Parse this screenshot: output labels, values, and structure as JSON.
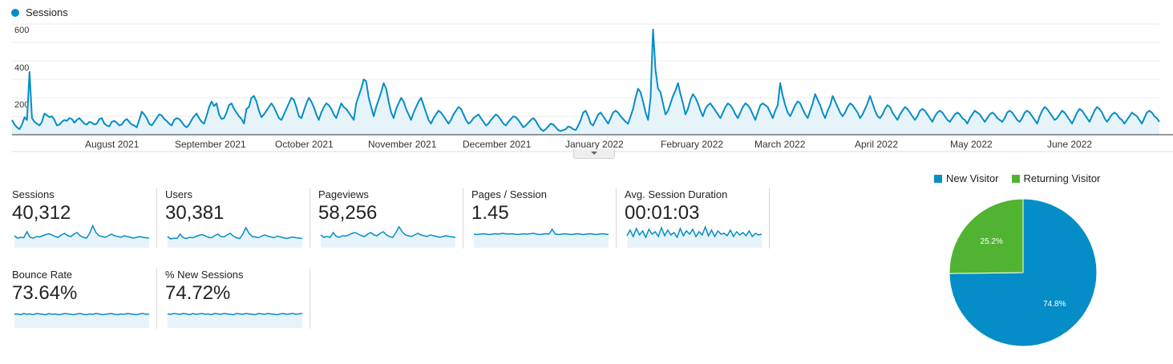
{
  "colors": {
    "series": "#058dc7",
    "area": "#e6f4fa",
    "grid": "#ebebeb",
    "new_visitor": "#058dc7",
    "returning_visitor": "#50b432"
  },
  "chart_data": [
    {
      "type": "line",
      "legend": [
        "Sessions"
      ],
      "ylim": [
        0,
        600
      ],
      "yticks": [
        "600",
        "400",
        "200"
      ],
      "xlabels": [
        "August 2021",
        "September 2021",
        "October 2021",
        "November 2021",
        "December 2021",
        "January 2022",
        "February 2022",
        "March 2022",
        "April 2022",
        "May 2022",
        "June 2022"
      ],
      "x_range": [
        "2021-07-01",
        "2022-06-30"
      ],
      "grid": true,
      "series": [
        {
          "name": "Sessions",
          "values": [
            80,
            55,
            40,
            30,
            55,
            95,
            80,
            340,
            90,
            70,
            60,
            50,
            70,
            115,
            105,
            95,
            100,
            80,
            50,
            55,
            70,
            80,
            75,
            90,
            85,
            65,
            80,
            90,
            75,
            60,
            55,
            70,
            65,
            55,
            60,
            85,
            90,
            60,
            50,
            45,
            70,
            75,
            65,
            50,
            55,
            75,
            85,
            70,
            55,
            50,
            40,
            80,
            125,
            110,
            90,
            60,
            50,
            70,
            90,
            110,
            105,
            85,
            75,
            60,
            50,
            80,
            90,
            85,
            70,
            50,
            40,
            55,
            80,
            100,
            115,
            90,
            70,
            60,
            100,
            150,
            180,
            155,
            170,
            110,
            85,
            90,
            120,
            160,
            170,
            140,
            120,
            100,
            85,
            60,
            140,
            150,
            200,
            210,
            180,
            130,
            95,
            110,
            130,
            150,
            170,
            150,
            120,
            90,
            80,
            110,
            140,
            170,
            200,
            190,
            150,
            100,
            90,
            130,
            170,
            200,
            180,
            150,
            110,
            80,
            120,
            150,
            170,
            160,
            140,
            110,
            90,
            130,
            170,
            150,
            140,
            120,
            100,
            80,
            170,
            210,
            250,
            300,
            290,
            200,
            150,
            100,
            150,
            190,
            230,
            280,
            250,
            180,
            120,
            90,
            140,
            170,
            200,
            180,
            140,
            110,
            80,
            120,
            150,
            180,
            200,
            160,
            120,
            80,
            60,
            90,
            110,
            130,
            120,
            100,
            80,
            60,
            80,
            110,
            130,
            150,
            140,
            110,
            80,
            60,
            70,
            90,
            100,
            110,
            90,
            70,
            50,
            60,
            80,
            95,
            110,
            100,
            80,
            60,
            50,
            70,
            85,
            100,
            95,
            80,
            60,
            40,
            50,
            65,
            80,
            90,
            75,
            50,
            30,
            20,
            30,
            45,
            60,
            55,
            40,
            25,
            20,
            25,
            30,
            45,
            40,
            30,
            25,
            50,
            80,
            120,
            130,
            100,
            60,
            50,
            80,
            110,
            120,
            100,
            80,
            60,
            90,
            120,
            130,
            120,
            100,
            85,
            70,
            60,
            100,
            140,
            200,
            250,
            230,
            180,
            120,
            80,
            200,
            570,
            350,
            250,
            230,
            170,
            110,
            130,
            170,
            210,
            240,
            280,
            220,
            170,
            110,
            140,
            190,
            220,
            200,
            170,
            130,
            100,
            140,
            160,
            170,
            150,
            130,
            110,
            90,
            120,
            150,
            170,
            160,
            140,
            110,
            90,
            120,
            150,
            170,
            160,
            140,
            110,
            80,
            120,
            160,
            170,
            160,
            150,
            120,
            90,
            130,
            160,
            280,
            210,
            160,
            120,
            100,
            130,
            160,
            180,
            170,
            140,
            110,
            90,
            130,
            170,
            220,
            190,
            160,
            120,
            90,
            130,
            160,
            210,
            180,
            150,
            120,
            100,
            120,
            150,
            170,
            160,
            140,
            120,
            90,
            110,
            140,
            170,
            210,
            170,
            130,
            100,
            90,
            110,
            140,
            160,
            150,
            120,
            100,
            80,
            110,
            130,
            150,
            140,
            120,
            100,
            80,
            100,
            130,
            140,
            130,
            110,
            90,
            70,
            100,
            120,
            130,
            120,
            100,
            80,
            70,
            90,
            110,
            120,
            110,
            90,
            80,
            60,
            90,
            110,
            130,
            120,
            110,
            90,
            70,
            90,
            110,
            120,
            110,
            90,
            80,
            70,
            90,
            120,
            130,
            120,
            100,
            80,
            70,
            90,
            120,
            130,
            120,
            100,
            80,
            60,
            100,
            130,
            150,
            140,
            120,
            100,
            80,
            90,
            110,
            130,
            120,
            100,
            80,
            60,
            90,
            120,
            140,
            130,
            110,
            90,
            70,
            100,
            130,
            150,
            140,
            120,
            90,
            70,
            90,
            110,
            120,
            110,
            90,
            80,
            60,
            80,
            100,
            120,
            110,
            100,
            80,
            60,
            90,
            120,
            130,
            120,
            100,
            90,
            70
          ]
        }
      ]
    },
    {
      "type": "pie",
      "legend": [
        "New Visitor",
        "Returning Visitor"
      ],
      "slices": [
        {
          "name": "New Visitor",
          "value": 74.8,
          "label": "74.8%"
        },
        {
          "name": "Returning Visitor",
          "value": 25.2,
          "label": "25.2%"
        }
      ]
    }
  ],
  "metrics": [
    {
      "label": "Sessions",
      "value": "40,312",
      "spark": [
        30,
        24,
        26,
        25,
        40,
        26,
        24,
        28,
        27,
        30,
        33,
        35,
        32,
        28,
        26,
        32,
        36,
        30,
        28,
        34,
        38,
        30,
        26,
        24,
        36,
        55,
        38,
        30,
        28,
        26,
        30,
        34,
        30,
        28,
        26,
        30,
        28,
        26,
        24,
        26,
        28,
        26,
        25,
        24
      ]
    },
    {
      "label": "Users",
      "value": "30,381",
      "spark": [
        28,
        22,
        24,
        23,
        34,
        25,
        23,
        26,
        25,
        28,
        31,
        33,
        30,
        26,
        25,
        30,
        34,
        28,
        27,
        32,
        36,
        29,
        25,
        23,
        34,
        50,
        36,
        28,
        27,
        25,
        29,
        32,
        29,
        27,
        25,
        29,
        27,
        25,
        23,
        25,
        27,
        25,
        24,
        23
      ]
    },
    {
      "label": "Pageviews",
      "value": "58,256",
      "spark": [
        32,
        26,
        28,
        26,
        38,
        28,
        26,
        30,
        29,
        32,
        36,
        38,
        34,
        30,
        28,
        34,
        38,
        32,
        30,
        36,
        40,
        32,
        28,
        26,
        38,
        52,
        40,
        32,
        30,
        28,
        32,
        36,
        32,
        30,
        28,
        32,
        30,
        28,
        26,
        28,
        30,
        28,
        27,
        26
      ]
    },
    {
      "label": "Pages / Session",
      "value": "1.45",
      "spark": [
        34,
        33,
        34,
        35,
        34,
        33,
        34,
        35,
        34,
        36,
        35,
        34,
        35,
        34,
        33,
        34,
        35,
        34,
        35,
        36,
        34,
        33,
        34,
        35,
        34,
        46,
        34,
        33,
        34,
        35,
        34,
        33,
        34,
        35,
        34,
        33,
        34,
        35,
        34,
        33,
        34,
        35,
        34,
        33
      ]
    },
    {
      "label": "Avg. Session Duration",
      "value": "00:01:03",
      "spark": [
        30,
        44,
        28,
        48,
        32,
        42,
        26,
        46,
        34,
        40,
        28,
        50,
        30,
        44,
        32,
        38,
        26,
        48,
        30,
        42,
        34,
        46,
        28,
        40,
        32,
        52,
        30,
        44,
        28,
        42,
        34,
        36,
        30,
        44,
        28,
        40,
        32,
        38,
        30,
        42,
        28,
        36,
        32,
        34
      ]
    },
    {
      "label": "Bounce Rate",
      "value": "73.64%",
      "spark": [
        34,
        35,
        33,
        36,
        34,
        35,
        33,
        36,
        35,
        34,
        33,
        36,
        34,
        35,
        33,
        34,
        36,
        35,
        34,
        33,
        35,
        36,
        34,
        33,
        35,
        34,
        36,
        35,
        33,
        34,
        35,
        36,
        34,
        33,
        35,
        34,
        36,
        35,
        34,
        33,
        35,
        36,
        34,
        35
      ]
    },
    {
      "label": "% New Sessions",
      "value": "74.72%",
      "spark": [
        35,
        34,
        36,
        35,
        34,
        36,
        35,
        33,
        36,
        34,
        35,
        36,
        34,
        35,
        33,
        36,
        35,
        34,
        36,
        35,
        34,
        33,
        36,
        35,
        34,
        36,
        35,
        34,
        33,
        36,
        35,
        34,
        36,
        35,
        34,
        33,
        35,
        36,
        34,
        35,
        36,
        34,
        35,
        36
      ]
    }
  ]
}
